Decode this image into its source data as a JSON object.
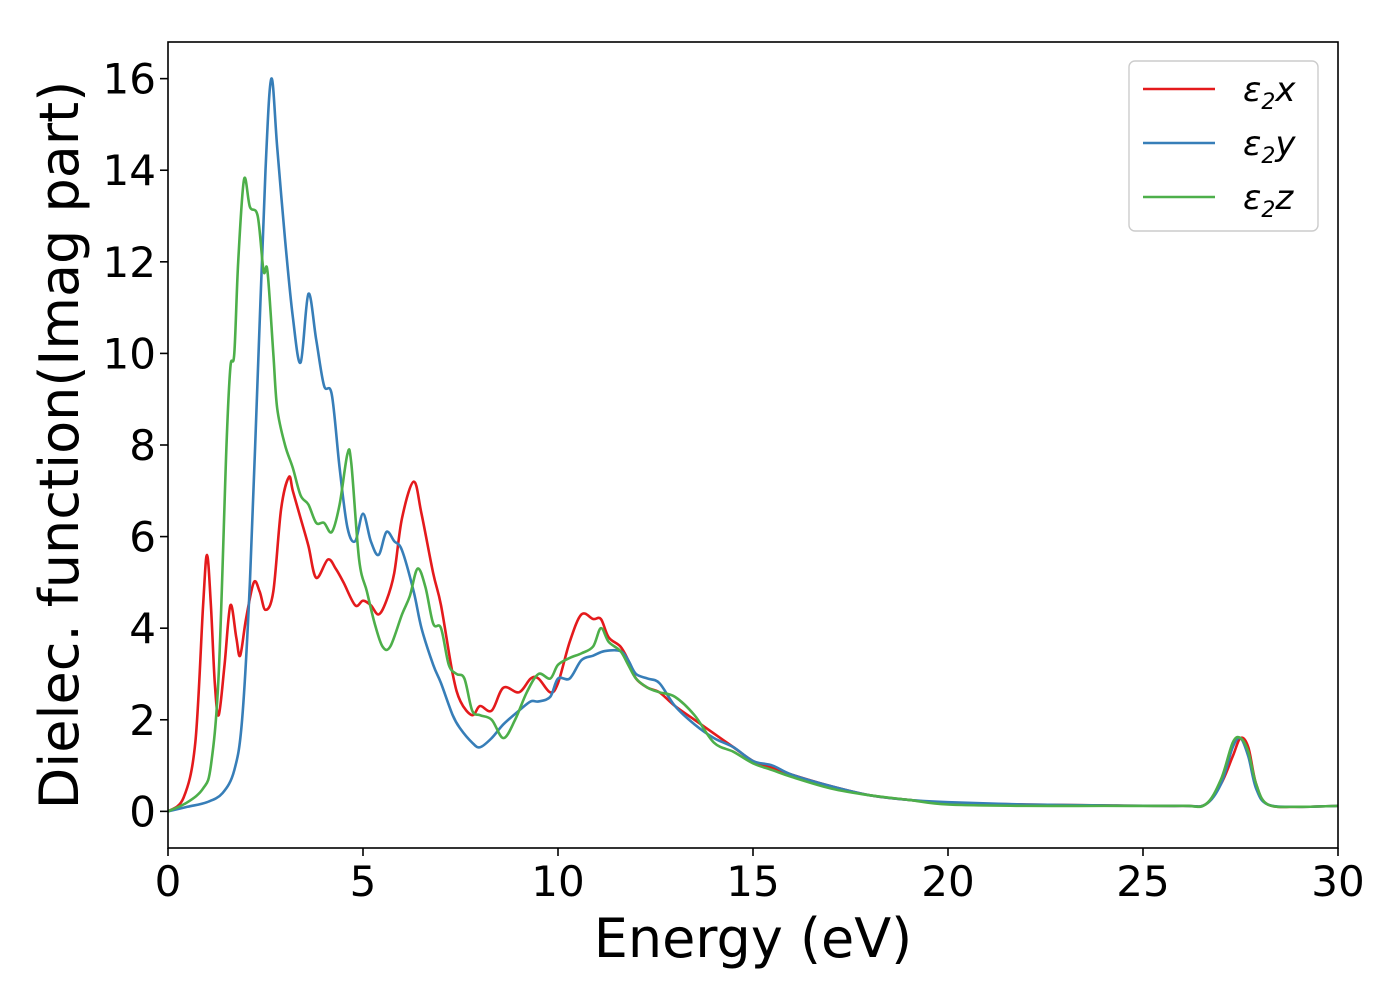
{
  "chart_data": {
    "type": "line",
    "title": "",
    "xlabel": "Energy (eV)",
    "ylabel": "Dielec. function(Imag part)",
    "xlim": [
      0,
      30
    ],
    "ylim": [
      -0.8,
      16.8
    ],
    "xticks": [
      0,
      5,
      10,
      15,
      20,
      25,
      30
    ],
    "xtick_labels": [
      "0",
      "5",
      "10",
      "15",
      "20",
      "25",
      "30"
    ],
    "yticks": [
      0,
      2,
      4,
      6,
      8,
      10,
      12,
      14,
      16
    ],
    "ytick_labels": [
      "0",
      "2",
      "4",
      "6",
      "8",
      "10",
      "12",
      "14",
      "16"
    ],
    "grid": false,
    "legend_position": "top-right",
    "series": [
      {
        "name": "ε2x",
        "legend_base": "ε",
        "legend_sub": "2",
        "legend_tail": "x",
        "color": "#e41a1c",
        "points": [
          [
            0,
            0
          ],
          [
            0.4,
            0.3
          ],
          [
            0.7,
            1.5
          ],
          [
            0.9,
            4.5
          ],
          [
            1.0,
            5.6
          ],
          [
            1.1,
            4.5
          ],
          [
            1.2,
            2.8
          ],
          [
            1.3,
            2.1
          ],
          [
            1.45,
            3.2
          ],
          [
            1.6,
            4.5
          ],
          [
            1.75,
            3.8
          ],
          [
            1.85,
            3.4
          ],
          [
            2.0,
            4.2
          ],
          [
            2.2,
            5.0
          ],
          [
            2.35,
            4.8
          ],
          [
            2.5,
            4.4
          ],
          [
            2.7,
            4.8
          ],
          [
            2.9,
            6.6
          ],
          [
            3.1,
            7.3
          ],
          [
            3.2,
            7.0
          ],
          [
            3.4,
            6.4
          ],
          [
            3.6,
            5.8
          ],
          [
            3.8,
            5.1
          ],
          [
            4.1,
            5.5
          ],
          [
            4.3,
            5.3
          ],
          [
            4.5,
            5.0
          ],
          [
            4.8,
            4.5
          ],
          [
            5.0,
            4.6
          ],
          [
            5.2,
            4.5
          ],
          [
            5.4,
            4.3
          ],
          [
            5.6,
            4.6
          ],
          [
            5.8,
            5.2
          ],
          [
            6.0,
            6.4
          ],
          [
            6.3,
            7.2
          ],
          [
            6.5,
            6.5
          ],
          [
            6.8,
            5.2
          ],
          [
            7.0,
            4.5
          ],
          [
            7.3,
            3.0
          ],
          [
            7.5,
            2.4
          ],
          [
            7.8,
            2.1
          ],
          [
            8.0,
            2.3
          ],
          [
            8.3,
            2.2
          ],
          [
            8.6,
            2.7
          ],
          [
            9.0,
            2.6
          ],
          [
            9.3,
            2.9
          ],
          [
            9.5,
            2.9
          ],
          [
            9.8,
            2.6
          ],
          [
            10.0,
            2.8
          ],
          [
            10.3,
            3.7
          ],
          [
            10.6,
            4.3
          ],
          [
            10.9,
            4.2
          ],
          [
            11.1,
            4.2
          ],
          [
            11.3,
            3.8
          ],
          [
            11.6,
            3.6
          ],
          [
            11.8,
            3.3
          ],
          [
            12.0,
            2.9
          ],
          [
            12.3,
            2.7
          ],
          [
            12.6,
            2.6
          ],
          [
            13.0,
            2.3
          ],
          [
            13.5,
            2.0
          ],
          [
            14.0,
            1.7
          ],
          [
            14.5,
            1.4
          ],
          [
            15.0,
            1.1
          ],
          [
            15.5,
            0.95
          ],
          [
            16.0,
            0.8
          ],
          [
            17.0,
            0.55
          ],
          [
            18.0,
            0.35
          ],
          [
            19.0,
            0.25
          ],
          [
            20.0,
            0.18
          ],
          [
            22.0,
            0.15
          ],
          [
            24.0,
            0.13
          ],
          [
            26.0,
            0.12
          ],
          [
            26.6,
            0.15
          ],
          [
            27.0,
            0.6
          ],
          [
            27.3,
            1.2
          ],
          [
            27.5,
            1.6
          ],
          [
            27.7,
            1.4
          ],
          [
            27.9,
            0.6
          ],
          [
            28.2,
            0.15
          ],
          [
            29.0,
            0.1
          ],
          [
            30.0,
            0.12
          ]
        ]
      },
      {
        "name": "ε2y",
        "legend_base": "ε",
        "legend_sub": "2",
        "legend_tail": "y",
        "color": "#377eb8",
        "points": [
          [
            0,
            0
          ],
          [
            0.5,
            0.1
          ],
          [
            1.0,
            0.2
          ],
          [
            1.4,
            0.4
          ],
          [
            1.7,
            0.9
          ],
          [
            1.9,
            2.0
          ],
          [
            2.1,
            5.0
          ],
          [
            2.3,
            9.5
          ],
          [
            2.5,
            14.0
          ],
          [
            2.65,
            16.0
          ],
          [
            2.8,
            14.5
          ],
          [
            3.0,
            12.5
          ],
          [
            3.2,
            10.8
          ],
          [
            3.4,
            9.8
          ],
          [
            3.6,
            11.3
          ],
          [
            3.8,
            10.3
          ],
          [
            4.0,
            9.3
          ],
          [
            4.2,
            9.1
          ],
          [
            4.4,
            7.5
          ],
          [
            4.6,
            6.2
          ],
          [
            4.8,
            5.9
          ],
          [
            5.0,
            6.5
          ],
          [
            5.2,
            5.9
          ],
          [
            5.4,
            5.6
          ],
          [
            5.6,
            6.1
          ],
          [
            5.8,
            5.9
          ],
          [
            6.0,
            5.7
          ],
          [
            6.3,
            4.8
          ],
          [
            6.5,
            4.0
          ],
          [
            6.8,
            3.2
          ],
          [
            7.0,
            2.8
          ],
          [
            7.3,
            2.1
          ],
          [
            7.5,
            1.8
          ],
          [
            7.8,
            1.5
          ],
          [
            8.0,
            1.4
          ],
          [
            8.3,
            1.6
          ],
          [
            8.6,
            1.9
          ],
          [
            9.0,
            2.2
          ],
          [
            9.3,
            2.4
          ],
          [
            9.5,
            2.4
          ],
          [
            9.8,
            2.5
          ],
          [
            10.0,
            2.9
          ],
          [
            10.3,
            2.9
          ],
          [
            10.6,
            3.3
          ],
          [
            10.9,
            3.4
          ],
          [
            11.2,
            3.5
          ],
          [
            11.6,
            3.5
          ],
          [
            11.8,
            3.3
          ],
          [
            12.0,
            3.0
          ],
          [
            12.3,
            2.9
          ],
          [
            12.6,
            2.8
          ],
          [
            13.0,
            2.3
          ],
          [
            13.5,
            1.9
          ],
          [
            14.0,
            1.6
          ],
          [
            14.5,
            1.4
          ],
          [
            15.0,
            1.1
          ],
          [
            15.5,
            1.0
          ],
          [
            16.0,
            0.8
          ],
          [
            17.0,
            0.55
          ],
          [
            18.0,
            0.35
          ],
          [
            19.0,
            0.25
          ],
          [
            20.0,
            0.2
          ],
          [
            22.0,
            0.15
          ],
          [
            24.0,
            0.13
          ],
          [
            26.0,
            0.12
          ],
          [
            26.6,
            0.15
          ],
          [
            27.0,
            0.6
          ],
          [
            27.3,
            1.4
          ],
          [
            27.5,
            1.6
          ],
          [
            27.7,
            1.2
          ],
          [
            27.9,
            0.5
          ],
          [
            28.2,
            0.15
          ],
          [
            29.0,
            0.1
          ],
          [
            30.0,
            0.12
          ]
        ]
      },
      {
        "name": "ε2z",
        "legend_base": "ε",
        "legend_sub": "2",
        "legend_tail": "z",
        "color": "#4daf4a",
        "points": [
          [
            0,
            0
          ],
          [
            0.5,
            0.2
          ],
          [
            0.9,
            0.5
          ],
          [
            1.1,
            1.0
          ],
          [
            1.3,
            3.0
          ],
          [
            1.5,
            8.0
          ],
          [
            1.6,
            9.7
          ],
          [
            1.7,
            10.0
          ],
          [
            1.8,
            12.0
          ],
          [
            1.95,
            13.8
          ],
          [
            2.1,
            13.2
          ],
          [
            2.3,
            13.0
          ],
          [
            2.45,
            11.8
          ],
          [
            2.55,
            11.8
          ],
          [
            2.7,
            10.0
          ],
          [
            2.8,
            8.8
          ],
          [
            3.0,
            8.0
          ],
          [
            3.2,
            7.5
          ],
          [
            3.4,
            6.9
          ],
          [
            3.6,
            6.7
          ],
          [
            3.8,
            6.3
          ],
          [
            4.0,
            6.3
          ],
          [
            4.2,
            6.1
          ],
          [
            4.4,
            6.7
          ],
          [
            4.6,
            7.8
          ],
          [
            4.7,
            7.6
          ],
          [
            4.9,
            5.5
          ],
          [
            5.1,
            4.8
          ],
          [
            5.3,
            4.1
          ],
          [
            5.5,
            3.6
          ],
          [
            5.7,
            3.6
          ],
          [
            6.0,
            4.3
          ],
          [
            6.2,
            4.7
          ],
          [
            6.4,
            5.3
          ],
          [
            6.6,
            4.9
          ],
          [
            6.8,
            4.1
          ],
          [
            7.0,
            4.0
          ],
          [
            7.2,
            3.2
          ],
          [
            7.4,
            3.0
          ],
          [
            7.6,
            2.9
          ],
          [
            7.8,
            2.2
          ],
          [
            8.0,
            2.1
          ],
          [
            8.3,
            2.0
          ],
          [
            8.6,
            1.6
          ],
          [
            8.9,
            2.0
          ],
          [
            9.2,
            2.6
          ],
          [
            9.5,
            3.0
          ],
          [
            9.8,
            2.9
          ],
          [
            10.0,
            3.2
          ],
          [
            10.3,
            3.35
          ],
          [
            10.6,
            3.45
          ],
          [
            10.9,
            3.6
          ],
          [
            11.1,
            4.0
          ],
          [
            11.3,
            3.7
          ],
          [
            11.6,
            3.5
          ],
          [
            11.8,
            3.2
          ],
          [
            12.0,
            2.9
          ],
          [
            12.3,
            2.7
          ],
          [
            12.6,
            2.6
          ],
          [
            13.0,
            2.5
          ],
          [
            13.5,
            2.1
          ],
          [
            14.0,
            1.5
          ],
          [
            14.5,
            1.3
          ],
          [
            15.0,
            1.05
          ],
          [
            15.5,
            0.9
          ],
          [
            16.0,
            0.75
          ],
          [
            17.0,
            0.5
          ],
          [
            18.0,
            0.35
          ],
          [
            19.0,
            0.25
          ],
          [
            20.0,
            0.15
          ],
          [
            22.0,
            0.12
          ],
          [
            24.0,
            0.12
          ],
          [
            26.0,
            0.12
          ],
          [
            26.6,
            0.15
          ],
          [
            27.0,
            0.7
          ],
          [
            27.3,
            1.5
          ],
          [
            27.5,
            1.6
          ],
          [
            27.7,
            1.3
          ],
          [
            27.9,
            0.6
          ],
          [
            28.2,
            0.15
          ],
          [
            29.0,
            0.1
          ],
          [
            30.0,
            0.12
          ]
        ]
      }
    ]
  }
}
